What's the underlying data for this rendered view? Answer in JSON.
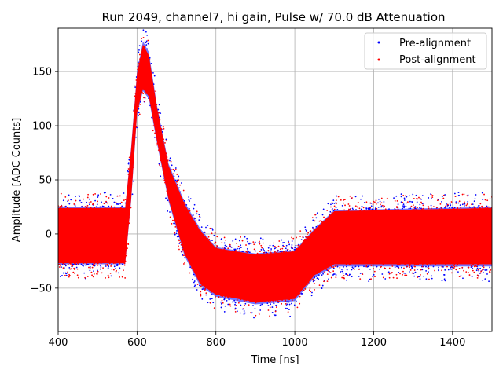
{
  "chart_data": {
    "type": "scatter",
    "title": "Run 2049, channel7, hi gain, Pulse w/ 70.0 dB Attenuation",
    "xlabel": "Time [ns]",
    "ylabel": "Amplitude [ADC Counts]",
    "xlim": [
      400,
      1500
    ],
    "ylim": [
      -90,
      190
    ],
    "xticks": [
      400,
      600,
      800,
      1000,
      1200,
      1400
    ],
    "yticks": [
      -50,
      0,
      50,
      100,
      150
    ],
    "grid": true,
    "legend_position": "top-right",
    "series": [
      {
        "name": "Pre-alignment",
        "color": "#0000ff",
        "marker": "dot",
        "envelope_upper": [
          [
            400,
            25
          ],
          [
            570,
            25
          ],
          [
            585,
            80
          ],
          [
            600,
            150
          ],
          [
            615,
            178
          ],
          [
            630,
            168
          ],
          [
            650,
            120
          ],
          [
            680,
            65
          ],
          [
            720,
            30
          ],
          [
            760,
            5
          ],
          [
            800,
            -12
          ],
          [
            900,
            -18
          ],
          [
            1000,
            -15
          ],
          [
            1050,
            5
          ],
          [
            1100,
            22
          ],
          [
            1500,
            25
          ]
        ],
        "envelope_lower": [
          [
            400,
            -28
          ],
          [
            570,
            -28
          ],
          [
            585,
            30
          ],
          [
            600,
            110
          ],
          [
            615,
            132
          ],
          [
            630,
            125
          ],
          [
            650,
            85
          ],
          [
            680,
            30
          ],
          [
            720,
            -20
          ],
          [
            760,
            -48
          ],
          [
            800,
            -58
          ],
          [
            900,
            -65
          ],
          [
            1000,
            -62
          ],
          [
            1050,
            -40
          ],
          [
            1100,
            -30
          ],
          [
            1500,
            -30
          ]
        ]
      },
      {
        "name": "Post-alignment",
        "color": "#ff0000",
        "marker": "dot",
        "envelope_upper": [
          [
            400,
            24
          ],
          [
            570,
            24
          ],
          [
            585,
            78
          ],
          [
            600,
            148
          ],
          [
            615,
            175
          ],
          [
            630,
            165
          ],
          [
            650,
            118
          ],
          [
            680,
            63
          ],
          [
            720,
            28
          ],
          [
            760,
            3
          ],
          [
            800,
            -13
          ],
          [
            900,
            -19
          ],
          [
            1000,
            -16
          ],
          [
            1050,
            4
          ],
          [
            1100,
            21
          ],
          [
            1500,
            24
          ]
        ],
        "envelope_lower": [
          [
            400,
            -27
          ],
          [
            570,
            -27
          ],
          [
            585,
            32
          ],
          [
            600,
            112
          ],
          [
            615,
            134
          ],
          [
            630,
            127
          ],
          [
            650,
            87
          ],
          [
            680,
            32
          ],
          [
            720,
            -18
          ],
          [
            760,
            -46
          ],
          [
            800,
            -56
          ],
          [
            900,
            -63
          ],
          [
            1000,
            -60
          ],
          [
            1050,
            -38
          ],
          [
            1100,
            -28
          ],
          [
            1500,
            -28
          ]
        ]
      }
    ]
  }
}
